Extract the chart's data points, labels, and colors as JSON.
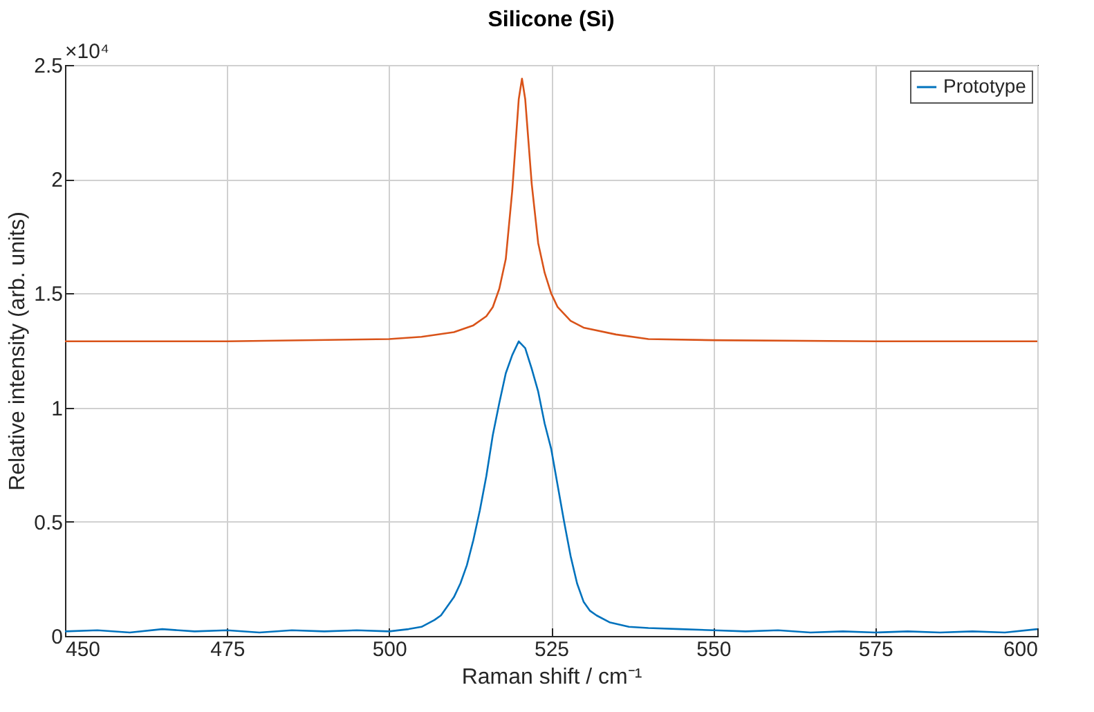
{
  "chart_data": {
    "type": "line",
    "title": "Silicone (Si)",
    "xlabel": "Raman shift / cm⁻¹",
    "ylabel": "Relative intensity (arb. units)",
    "annotations": [
      "×10⁴"
    ],
    "xlim": [
      450,
      600
    ],
    "xticks": [
      450,
      475,
      500,
      525,
      550,
      575,
      600
    ],
    "ylim": [
      0,
      2.5
    ],
    "yticks": [
      0,
      0.5,
      1,
      1.5,
      2,
      2.5
    ],
    "grid": true,
    "legend": "top right",
    "marker": "none",
    "line_style": "solid",
    "series": [
      {
        "name": "Prototype",
        "color": "#0072bd",
        "x": [
          450,
          455,
          460,
          465,
          470,
          475,
          480,
          485,
          490,
          495,
          500,
          503,
          505,
          507,
          508,
          509,
          510,
          511,
          512,
          513,
          514,
          515,
          516,
          517,
          518,
          519,
          520,
          521,
          522,
          523,
          524,
          525,
          526,
          527,
          528,
          529,
          530,
          531,
          532,
          534,
          537,
          540,
          545,
          550,
          555,
          560,
          565,
          570,
          575,
          580,
          585,
          590,
          595,
          600
        ],
        "values": [
          0.02,
          0.025,
          0.015,
          0.03,
          0.02,
          0.025,
          0.015,
          0.025,
          0.02,
          0.025,
          0.02,
          0.03,
          0.04,
          0.07,
          0.09,
          0.13,
          0.17,
          0.23,
          0.31,
          0.42,
          0.55,
          0.7,
          0.88,
          1.02,
          1.15,
          1.23,
          1.29,
          1.26,
          1.17,
          1.07,
          0.93,
          0.82,
          0.66,
          0.5,
          0.35,
          0.23,
          0.15,
          0.11,
          0.09,
          0.06,
          0.04,
          0.035,
          0.03,
          0.025,
          0.02,
          0.025,
          0.015,
          0.02,
          0.015,
          0.02,
          0.015,
          0.02,
          0.015,
          0.03
        ]
      },
      {
        "color": "#d95319",
        "x": [
          450,
          475,
          500,
          505,
          510,
          513,
          515,
          516,
          517,
          518,
          519,
          520,
          520.5,
          521,
          522,
          523,
          524,
          525,
          526,
          528,
          530,
          535,
          540,
          550,
          575,
          600
        ],
        "values": [
          1.29,
          1.29,
          1.3,
          1.31,
          1.33,
          1.36,
          1.4,
          1.44,
          1.52,
          1.65,
          1.95,
          2.35,
          2.44,
          2.35,
          1.98,
          1.72,
          1.59,
          1.5,
          1.44,
          1.38,
          1.35,
          1.32,
          1.3,
          1.295,
          1.29,
          1.29
        ]
      }
    ]
  }
}
